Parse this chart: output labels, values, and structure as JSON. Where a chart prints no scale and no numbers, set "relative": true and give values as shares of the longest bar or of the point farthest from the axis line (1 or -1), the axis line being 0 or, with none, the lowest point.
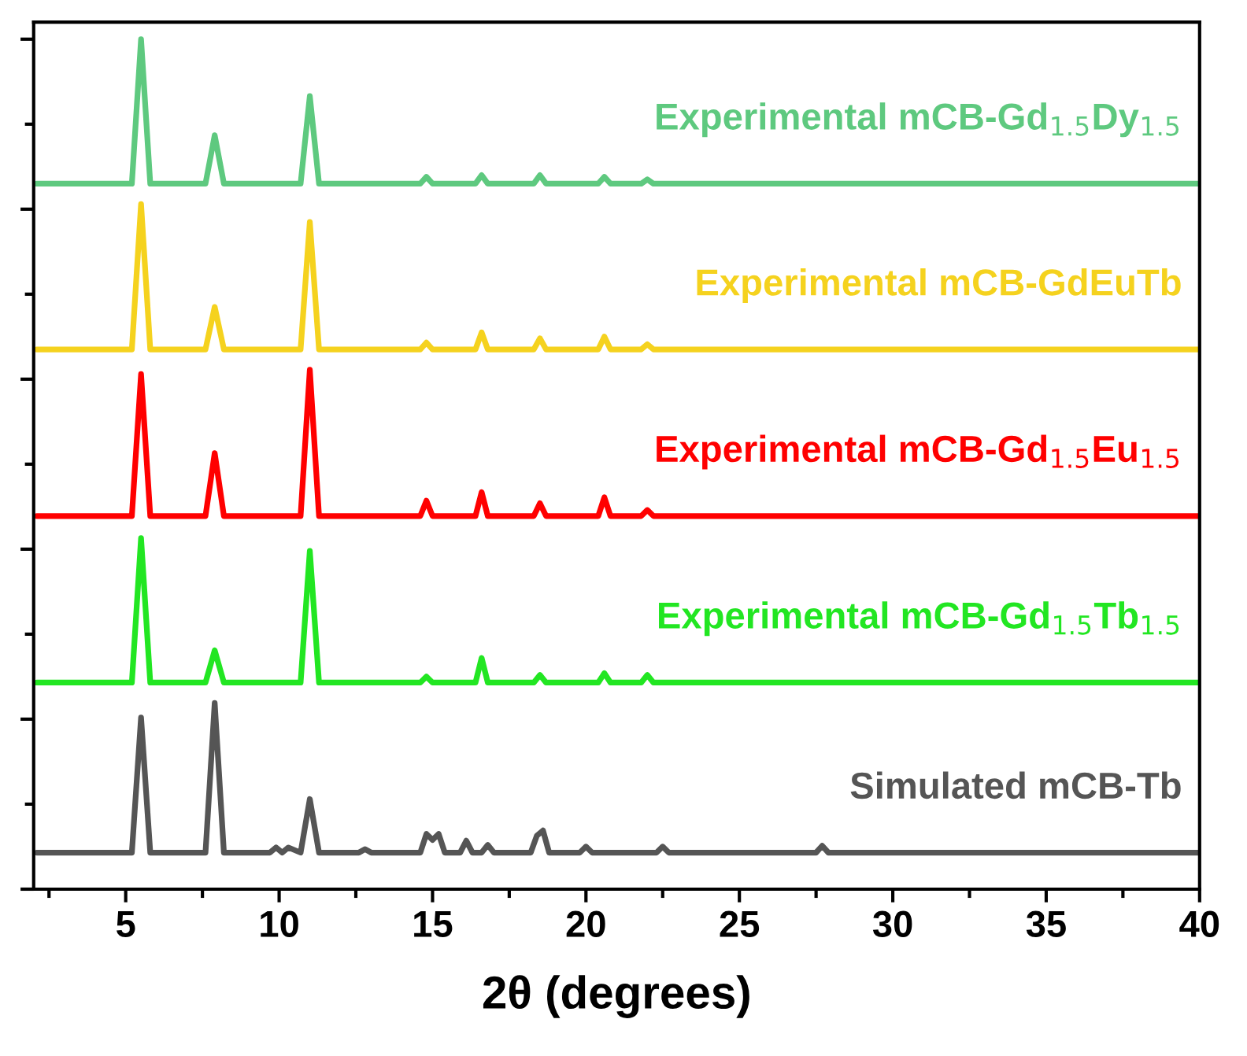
{
  "chart_data": {
    "type": "line",
    "relative": true,
    "xlabel": "2θ (degrees)",
    "xlim": [
      2,
      40
    ],
    "xticks": [
      5,
      10,
      15,
      20,
      25,
      30,
      35,
      40
    ],
    "tick_labels": "x",
    "grid": false,
    "legend": false,
    "marker": "none",
    "line_style": "solid",
    "series": [
      {
        "name": "Experimental mCB-Gd$_{1.5}$Dy$_{1.5}$",
        "color": "#5ec97f",
        "x": [
          2.1,
          5.2,
          5.5,
          5.8,
          7.6,
          7.9,
          8.2,
          10.7,
          11.0,
          11.3,
          14.6,
          14.8,
          15.0,
          16.4,
          16.6,
          16.8,
          18.3,
          18.5,
          18.7,
          20.4,
          20.6,
          20.8,
          21.8,
          22.0,
          22.2,
          40
        ],
        "values": [
          0.83,
          0.83,
          1.0,
          0.83,
          0.83,
          0.887,
          0.83,
          0.83,
          0.933,
          0.83,
          0.83,
          0.838,
          0.83,
          0.83,
          0.84,
          0.83,
          0.83,
          0.84,
          0.83,
          0.83,
          0.838,
          0.83,
          0.83,
          0.835,
          0.83,
          0.83
        ]
      },
      {
        "name": "Experimental mCB-GdEuTb",
        "color": "#f5d21e",
        "x": [
          2.1,
          5.2,
          5.5,
          5.8,
          7.6,
          7.9,
          8.2,
          10.7,
          11.0,
          11.3,
          14.6,
          14.8,
          15.0,
          16.4,
          16.6,
          16.8,
          18.3,
          18.5,
          18.7,
          20.4,
          20.6,
          20.8,
          21.8,
          22.0,
          22.2,
          40
        ],
        "values": [
          0.635,
          0.635,
          0.806,
          0.635,
          0.635,
          0.685,
          0.635,
          0.635,
          0.785,
          0.635,
          0.635,
          0.643,
          0.635,
          0.635,
          0.655,
          0.635,
          0.635,
          0.648,
          0.635,
          0.635,
          0.65,
          0.635,
          0.635,
          0.641,
          0.635,
          0.635
        ]
      },
      {
        "name": "Experimental mCB-Gd$_{1.5}$Eu$_{1.5}$",
        "color": "#ff0000",
        "x": [
          2.1,
          5.2,
          5.5,
          5.8,
          7.6,
          7.9,
          8.2,
          10.7,
          11.0,
          11.3,
          14.6,
          14.8,
          15.0,
          16.4,
          16.6,
          16.8,
          18.3,
          18.5,
          18.7,
          20.4,
          20.6,
          20.8,
          21.8,
          22.0,
          22.2,
          40
        ],
        "values": [
          0.439,
          0.439,
          0.606,
          0.439,
          0.439,
          0.513,
          0.439,
          0.439,
          0.611,
          0.439,
          0.439,
          0.457,
          0.439,
          0.439,
          0.467,
          0.439,
          0.439,
          0.454,
          0.439,
          0.439,
          0.461,
          0.439,
          0.439,
          0.446,
          0.439,
          0.439
        ]
      },
      {
        "name": "Experimental mCB-Gd$_{1.5}$Tb$_{1.5}$",
        "color": "#22e622",
        "x": [
          2.1,
          5.2,
          5.5,
          5.8,
          7.6,
          7.9,
          8.2,
          10.7,
          11.0,
          11.3,
          14.6,
          14.8,
          15.0,
          16.4,
          16.6,
          16.8,
          18.3,
          18.5,
          18.7,
          20.4,
          20.6,
          20.8,
          21.8,
          22.0,
          22.2,
          40
        ],
        "values": [
          0.243,
          0.243,
          0.413,
          0.243,
          0.243,
          0.281,
          0.243,
          0.243,
          0.398,
          0.243,
          0.243,
          0.25,
          0.243,
          0.243,
          0.272,
          0.243,
          0.243,
          0.252,
          0.243,
          0.243,
          0.254,
          0.243,
          0.243,
          0.252,
          0.243,
          0.243
        ]
      },
      {
        "name": "Simulated mCB-Tb",
        "color": "#555555",
        "x": [
          2.1,
          5.2,
          5.5,
          5.8,
          7.6,
          7.9,
          8.2,
          9.7,
          9.9,
          10.1,
          10.3,
          10.7,
          11.0,
          11.3,
          12.6,
          12.8,
          13.0,
          14.6,
          14.8,
          15.0,
          15.2,
          15.4,
          15.9,
          16.1,
          16.3,
          16.6,
          16.8,
          17.0,
          18.2,
          18.4,
          18.6,
          18.8,
          19.8,
          20.0,
          20.2,
          22.3,
          22.5,
          22.7,
          27.5,
          27.7,
          27.9,
          40
        ],
        "values": [
          0.043,
          0.043,
          0.202,
          0.043,
          0.043,
          0.219,
          0.043,
          0.043,
          0.049,
          0.043,
          0.049,
          0.043,
          0.106,
          0.043,
          0.043,
          0.047,
          0.043,
          0.043,
          0.065,
          0.058,
          0.065,
          0.043,
          0.043,
          0.057,
          0.043,
          0.043,
          0.052,
          0.043,
          0.043,
          0.063,
          0.069,
          0.043,
          0.043,
          0.05,
          0.043,
          0.043,
          0.05,
          0.043,
          0.043,
          0.051,
          0.043,
          0.043
        ]
      }
    ]
  }
}
